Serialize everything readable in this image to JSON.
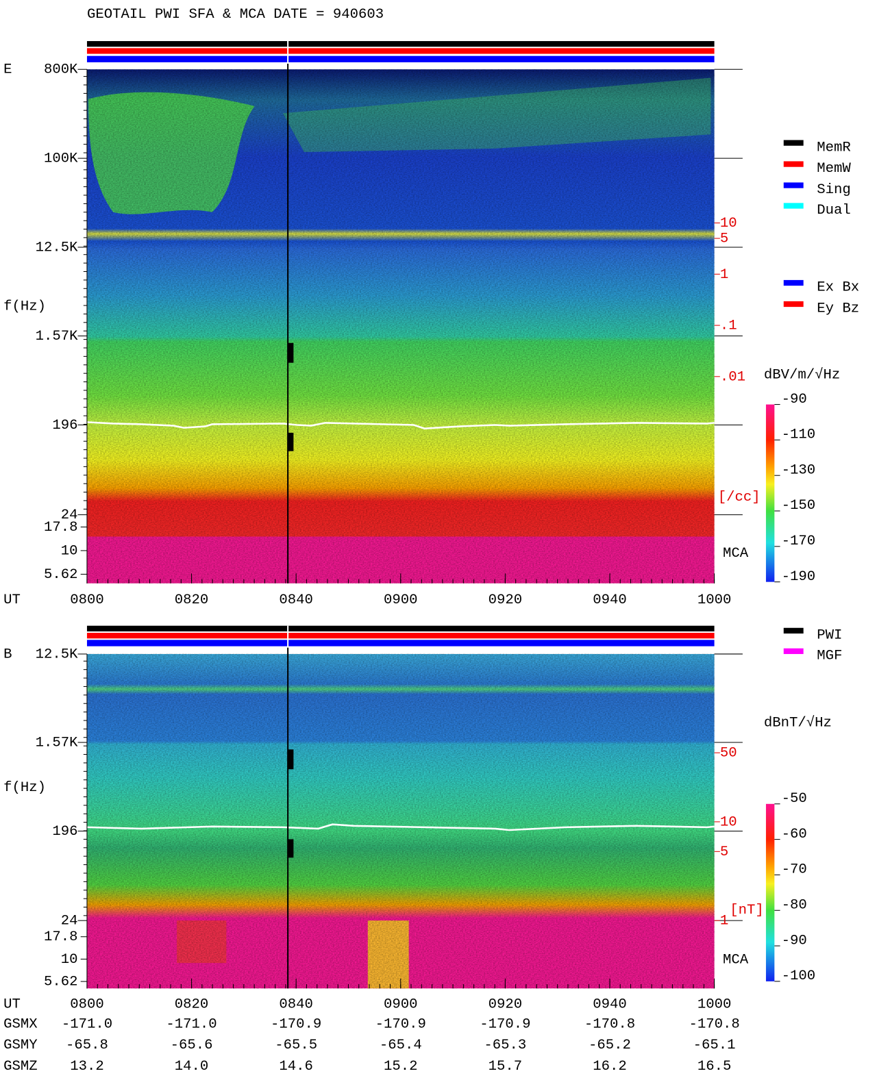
{
  "title": "GEOTAIL  PWI SFA & MCA   DATE = 940603",
  "chart_data": [
    {
      "type": "spectrogram",
      "panel_label": "E",
      "ylabel": "f(Hz)",
      "xlabel": "UT",
      "log_scale": true,
      "ylim": [
        24,
        800000
      ],
      "yticks": [
        {
          "value": 800000,
          "label": "800K"
        },
        {
          "value": 100000,
          "label": "100K"
        },
        {
          "value": 12500,
          "label": "12.5K"
        },
        {
          "value": 1570,
          "label": "1.57K"
        },
        196,
        24
      ],
      "mca_label": "MCA",
      "mca_ylim": [
        4.5,
        24
      ],
      "mca_yticks": [
        17.8,
        10,
        5.62
      ],
      "x": [
        "0800",
        "0820",
        "0840",
        "0900",
        "0920",
        "0940",
        "1000"
      ],
      "y2lim": [
        2e-05,
        10000
      ],
      "y2ticks": [
        10,
        5,
        1,
        {
          "value": 0.1,
          "label": ".1"
        },
        {
          "value": 0.01,
          "label": ".01"
        }
      ],
      "y2label": "[/cc]",
      "colorbar": {
        "label": "dBV/m/√Hz",
        "lim": [
          -190,
          -90
        ],
        "ticks": [
          -90,
          -110,
          -130,
          -150,
          -170,
          -190
        ]
      },
      "legend": [
        {
          "name": "MemR",
          "color": "#000000"
        },
        {
          "name": "MemW",
          "color": "#ff0000"
        },
        {
          "name": "Sing",
          "color": "#0000ff"
        },
        {
          "name": "Dual",
          "color": "#00ffff"
        }
      ],
      "legend2": [
        {
          "name": "Ex Bx",
          "color": "#0000ff"
        },
        {
          "name": "Ey Bz",
          "color": "#ff0000"
        }
      ]
    },
    {
      "type": "spectrogram",
      "panel_label": "B",
      "ylabel": "f(Hz)",
      "xlabel": "UT",
      "log_scale": true,
      "ylim": [
        24,
        12500
      ],
      "yticks": [
        {
          "value": 12500,
          "label": "12.5K"
        },
        {
          "value": 1570,
          "label": "1.57K"
        },
        196,
        24
      ],
      "mca_label": "MCA",
      "mca_ylim": [
        4.7,
        27
      ],
      "mca_yticks": [
        17.8,
        10,
        5.62
      ],
      "x": [
        "0800",
        "0820",
        "0840",
        "0900",
        "0920",
        "0940",
        "1000"
      ],
      "y2lim": [
        1,
        500
      ],
      "y2ticks": [
        50,
        10,
        5,
        1
      ],
      "y2label": "[nT]",
      "colorbar": {
        "label": "dBnT/√Hz",
        "lim": [
          -100,
          -50
        ],
        "ticks": [
          -50,
          -60,
          -70,
          -80,
          -90,
          -100
        ]
      },
      "legend": [
        {
          "name": "PWI",
          "color": "#000000"
        },
        {
          "name": "MGF",
          "color": "#ff00ff"
        }
      ]
    }
  ],
  "orbit": {
    "rows": [
      {
        "name": "GSMX",
        "values": [
          "-171.0",
          "-171.0",
          "-170.9",
          "-170.9",
          "-170.9",
          "-170.8",
          "-170.8"
        ]
      },
      {
        "name": "GSMY",
        "values": [
          "-65.8",
          "-65.6",
          "-65.5",
          "-65.4",
          "-65.3",
          "-65.2",
          "-65.1"
        ]
      },
      {
        "name": "GSMZ",
        "values": [
          "13.2",
          "14.0",
          "14.6",
          "15.2",
          "15.7",
          "16.2",
          "16.5"
        ]
      }
    ]
  }
}
